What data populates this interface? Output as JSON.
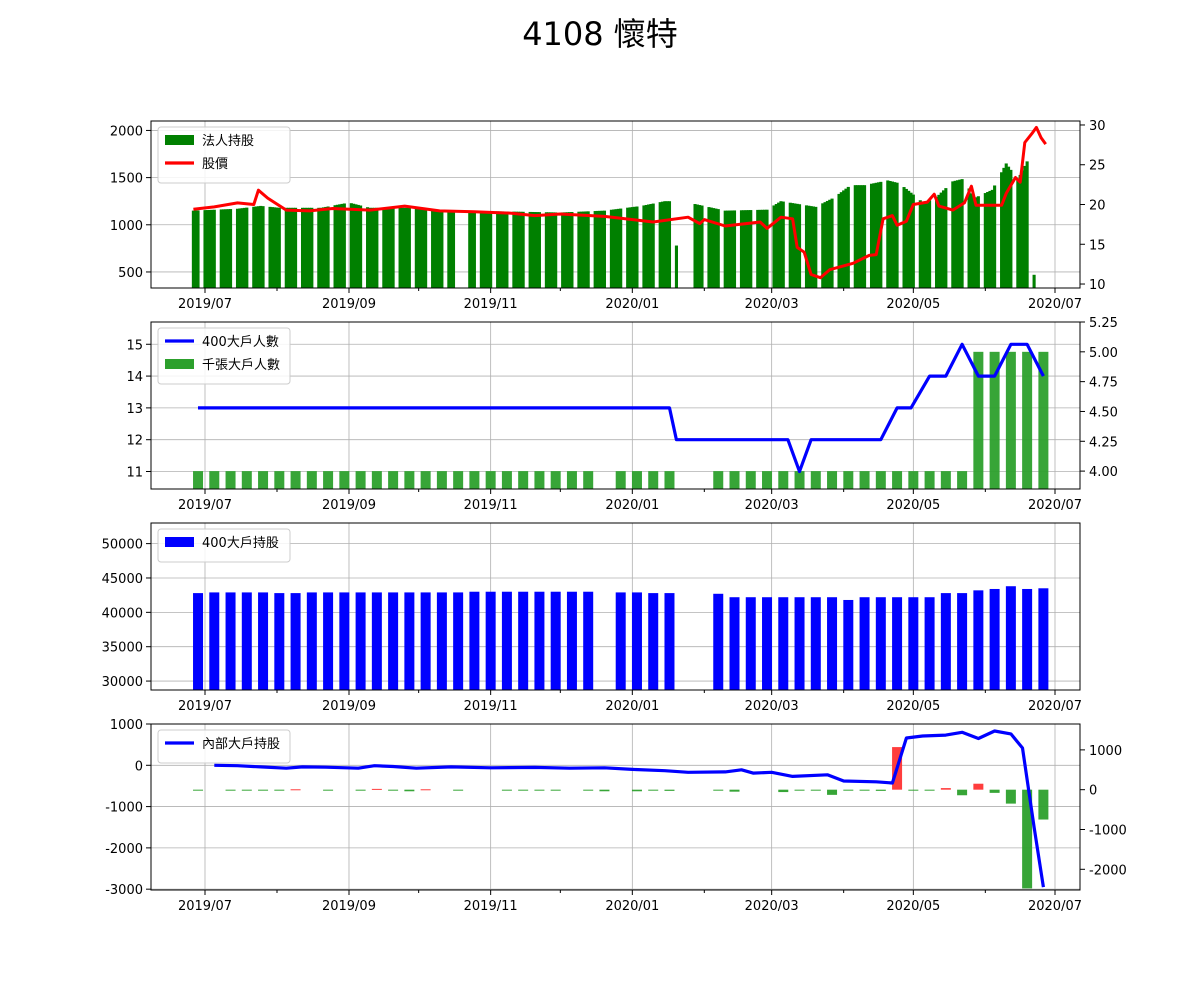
{
  "title": "4108 懷特",
  "colors": {
    "holdings_bar": "#008000",
    "price_line": "#ff0000",
    "big400_line": "#0000ff",
    "thousand_bar": "#2ca02c",
    "big400_bar": "#0000ff",
    "insider_line": "#0000ff",
    "change_pos": "#ff3333",
    "change_neg": "#2ca02c"
  },
  "x_ticks": [
    "2019/07",
    "2019/09",
    "2019/11",
    "2020/01",
    "2020/03",
    "2020/05",
    "2020/07"
  ],
  "chart_data": [
    {
      "type": "bar",
      "panel": "institutional",
      "ylim": [
        330,
        2100
      ],
      "yticks": [
        500,
        1000,
        1500,
        2000
      ],
      "y2lim": [
        9.5,
        30.5
      ],
      "y2ticks": [
        10,
        15,
        20,
        25,
        30
      ],
      "legend_position": "top-left",
      "grid": true,
      "series": [
        {
          "name": "法人持股",
          "axis": "left",
          "type": "bar",
          "anchors": [
            [
              "2019-06-26",
              1150
            ],
            [
              "2019-07-15",
              1170
            ],
            [
              "2019-07-25",
              1200
            ],
            [
              "2019-08-02",
              1180
            ],
            [
              "2019-08-20",
              1180
            ],
            [
              "2019-09-01",
              1235
            ],
            [
              "2019-09-10",
              1180
            ],
            [
              "2019-10-01",
              1180
            ],
            [
              "2019-10-08",
              1160
            ],
            [
              "2019-10-14",
              1150
            ],
            [
              "2019-11-10",
              1140
            ],
            [
              "2019-12-01",
              1130
            ],
            [
              "2019-12-20",
              1150
            ],
            [
              "2020-01-05",
              1200
            ],
            [
              "2020-01-15",
              1250
            ],
            [
              "2020-01-19",
              1250
            ],
            [
              "2020-01-20",
              780
            ],
            [
              "2020-01-28",
              1220
            ],
            [
              "2020-02-10",
              1150
            ],
            [
              "2020-02-28",
              1160
            ],
            [
              "2020-03-05",
              1250
            ],
            [
              "2020-03-20",
              1190
            ],
            [
              "2020-03-28",
              1290
            ],
            [
              "2020-04-04",
              1420
            ],
            [
              "2020-04-10",
              1420
            ],
            [
              "2020-04-20",
              1470
            ],
            [
              "2020-04-25",
              1440
            ],
            [
              "2020-05-05",
              1240
            ],
            [
              "2020-05-10",
              1270
            ],
            [
              "2020-05-18",
              1460
            ],
            [
              "2020-05-23",
              1490
            ],
            [
              "2020-05-27",
              1280
            ],
            [
              "2020-06-04",
              1370
            ],
            [
              "2020-06-10",
              1650
            ],
            [
              "2020-06-15",
              1480
            ],
            [
              "2020-06-20",
              1720
            ],
            [
              "2020-06-21",
              1700
            ],
            [
              "2020-06-22",
              470
            ]
          ]
        },
        {
          "name": "股價",
          "axis": "right",
          "type": "line",
          "points": [
            [
              "2019-06-26",
              19.4
            ],
            [
              "2019-07-05",
              19.7
            ],
            [
              "2019-07-15",
              20.2
            ],
            [
              "2019-07-22",
              20.0
            ],
            [
              "2019-07-24",
              21.8
            ],
            [
              "2019-07-28",
              20.8
            ],
            [
              "2019-08-05",
              19.3
            ],
            [
              "2019-08-15",
              19.2
            ],
            [
              "2019-08-25",
              19.5
            ],
            [
              "2019-09-10",
              19.3
            ],
            [
              "2019-09-25",
              19.8
            ],
            [
              "2019-10-10",
              19.2
            ],
            [
              "2019-10-25",
              19.1
            ],
            [
              "2019-11-10",
              18.9
            ],
            [
              "2019-11-20",
              18.6
            ],
            [
              "2019-12-01",
              18.8
            ],
            [
              "2019-12-20",
              18.5
            ],
            [
              "2020-01-10",
              17.8
            ],
            [
              "2020-01-25",
              18.4
            ],
            [
              "2020-01-30",
              17.6
            ],
            [
              "2020-02-01",
              18.1
            ],
            [
              "2020-02-10",
              17.3
            ],
            [
              "2020-02-25",
              17.8
            ],
            [
              "2020-02-28",
              17.0
            ],
            [
              "2020-03-05",
              18.4
            ],
            [
              "2020-03-10",
              18.2
            ],
            [
              "2020-03-12",
              14.6
            ],
            [
              "2020-03-15",
              14.0
            ],
            [
              "2020-03-18",
              11.2
            ],
            [
              "2020-03-22",
              10.8
            ],
            [
              "2020-03-26",
              11.8
            ],
            [
              "2020-04-05",
              12.6
            ],
            [
              "2020-04-12",
              13.6
            ],
            [
              "2020-04-15",
              13.7
            ],
            [
              "2020-04-18",
              18.2
            ],
            [
              "2020-04-22",
              18.6
            ],
            [
              "2020-04-24",
              17.4
            ],
            [
              "2020-04-28",
              17.9
            ],
            [
              "2020-05-01",
              20.0
            ],
            [
              "2020-05-07",
              20.3
            ],
            [
              "2020-05-10",
              21.3
            ],
            [
              "2020-05-12",
              19.8
            ],
            [
              "2020-05-18",
              19.3
            ],
            [
              "2020-05-23",
              20.2
            ],
            [
              "2020-05-26",
              22.3
            ],
            [
              "2020-05-28",
              19.9
            ],
            [
              "2020-06-08",
              19.9
            ],
            [
              "2020-06-10",
              21.4
            ],
            [
              "2020-06-14",
              23.4
            ],
            [
              "2020-06-16",
              22.8
            ],
            [
              "2020-06-18",
              27.8
            ],
            [
              "2020-06-21",
              28.9
            ],
            [
              "2020-06-23",
              29.7
            ],
            [
              "2020-06-25",
              28.4
            ],
            [
              "2020-06-27",
              27.6
            ]
          ]
        }
      ]
    },
    {
      "type": "bar",
      "panel": "holder_counts",
      "ylim": [
        10.45,
        15.7
      ],
      "yticks": [
        11,
        12,
        13,
        14,
        15
      ],
      "y2lim": [
        3.85,
        5.25
      ],
      "y2ticks": [
        4.0,
        4.25,
        4.5,
        4.75,
        5.0,
        5.25
      ],
      "y2ticklabels": [
        "4.00",
        "4.25",
        "4.50",
        "4.75",
        "5.00",
        "5.25"
      ],
      "legend_position": "top-left",
      "grid": true,
      "series": [
        {
          "name": "400大戶人數",
          "axis": "left",
          "type": "line",
          "points": [
            [
              "2019-06-28",
              13
            ],
            [
              "2020-01-17",
              13
            ],
            [
              "2020-01-20",
              12
            ],
            [
              "2020-03-08",
              12
            ],
            [
              "2020-03-13",
              11
            ],
            [
              "2020-03-18",
              12
            ],
            [
              "2020-04-17",
              12
            ],
            [
              "2020-04-24",
              13
            ],
            [
              "2020-04-30",
              13
            ],
            [
              "2020-05-08",
              14
            ],
            [
              "2020-05-15",
              14
            ],
            [
              "2020-05-22",
              15
            ],
            [
              "2020-05-29",
              14
            ],
            [
              "2020-06-05",
              14
            ],
            [
              "2020-06-12",
              15
            ],
            [
              "2020-06-19",
              15
            ],
            [
              "2020-06-26",
              14
            ]
          ]
        },
        {
          "name": "千張大戶人數",
          "axis": "right",
          "type": "bar",
          "values": [
            4,
            4,
            4,
            4,
            4,
            4,
            4,
            4,
            4,
            4,
            4,
            4,
            4,
            4,
            4,
            4,
            4,
            4,
            4,
            4,
            4,
            4,
            4,
            4,
            4,
            4,
            4,
            4,
            4,
            4,
            4,
            4,
            4,
            4,
            4,
            4,
            4,
            4,
            4,
            4,
            4,
            4,
            4,
            4,
            4,
            5,
            5,
            5,
            5,
            5,
            5,
            5,
            5,
            4,
            4
          ]
        }
      ]
    },
    {
      "type": "bar",
      "panel": "big400_holdings",
      "ylim": [
        28700,
        53000
      ],
      "yticks": [
        30000,
        35000,
        40000,
        45000,
        50000
      ],
      "legend_position": "top-left",
      "grid": true,
      "series": [
        {
          "name": "400大戶持股",
          "axis": "left",
          "type": "bar",
          "values": [
            42800,
            42900,
            42900,
            42900,
            42900,
            42800,
            42800,
            42900,
            42900,
            42900,
            42900,
            42900,
            42900,
            42900,
            42900,
            42900,
            42900,
            43000,
            43000,
            43000,
            43000,
            43000,
            43000,
            43000,
            43000,
            42900,
            42900,
            42800,
            42800,
            42700,
            42200,
            42200,
            42200,
            42200,
            42200,
            42200,
            42200,
            41800,
            42200,
            42200,
            42200,
            42200,
            42200,
            42800,
            42800,
            43200,
            43400,
            43800,
            43400,
            43500,
            44400,
            42200,
            41100
          ]
        }
      ]
    },
    {
      "type": "bar",
      "panel": "insider",
      "ylim": [
        -3020,
        1000
      ],
      "yticks": [
        -3000,
        -2000,
        -1000,
        0,
        1000
      ],
      "y2lim": [
        -2520,
        1650
      ],
      "y2ticks": [
        -2000,
        -1000,
        0,
        1000
      ],
      "legend_position": "top-left",
      "grid": true,
      "series": [
        {
          "name": "內部大戶持股",
          "axis": "left",
          "type": "line",
          "points": [
            [
              "2019-07-05",
              0
            ],
            [
              "2019-07-15",
              -10
            ],
            [
              "2019-07-25",
              -40
            ],
            [
              "2019-08-05",
              -70
            ],
            [
              "2019-08-12",
              -40
            ],
            [
              "2019-08-22",
              -45
            ],
            [
              "2019-09-05",
              -70
            ],
            [
              "2019-09-12",
              -10
            ],
            [
              "2019-09-20",
              -30
            ],
            [
              "2019-09-30",
              -70
            ],
            [
              "2019-10-15",
              -40
            ],
            [
              "2019-11-01",
              -60
            ],
            [
              "2019-11-20",
              -50
            ],
            [
              "2019-12-05",
              -70
            ],
            [
              "2019-12-20",
              -60
            ],
            [
              "2020-01-01",
              -100
            ],
            [
              "2020-01-15",
              -130
            ],
            [
              "2020-01-25",
              -170
            ],
            [
              "2020-02-10",
              -160
            ],
            [
              "2020-02-17",
              -110
            ],
            [
              "2020-02-22",
              -190
            ],
            [
              "2020-03-01",
              -170
            ],
            [
              "2020-03-10",
              -270
            ],
            [
              "2020-03-25",
              -230
            ],
            [
              "2020-04-01",
              -380
            ],
            [
              "2020-04-15",
              -400
            ],
            [
              "2020-04-22",
              -430
            ],
            [
              "2020-04-28",
              660
            ],
            [
              "2020-05-05",
              710
            ],
            [
              "2020-05-15",
              730
            ],
            [
              "2020-05-22",
              800
            ],
            [
              "2020-05-29",
              650
            ],
            [
              "2020-06-05",
              830
            ],
            [
              "2020-06-12",
              760
            ],
            [
              "2020-06-17",
              420
            ],
            [
              "2020-06-22",
              -1500
            ],
            [
              "2020-06-26",
              -2950
            ]
          ]
        },
        {
          "name": "",
          "axis": "right",
          "type": "bar",
          "points": [
            [
              "2019-06-28",
              -15
            ],
            [
              "2019-07-12",
              -10
            ],
            [
              "2019-07-19",
              -15
            ],
            [
              "2019-07-26",
              -15
            ],
            [
              "2019-08-02",
              -20
            ],
            [
              "2019-08-09",
              10
            ],
            [
              "2019-08-23",
              -10
            ],
            [
              "2019-09-06",
              -10
            ],
            [
              "2019-09-13",
              20
            ],
            [
              "2019-09-20",
              -20
            ],
            [
              "2019-09-27",
              -40
            ],
            [
              "2019-10-04",
              10
            ],
            [
              "2019-10-18",
              -10
            ],
            [
              "2019-11-08",
              -5
            ],
            [
              "2019-11-15",
              -5
            ],
            [
              "2019-11-22",
              -10
            ],
            [
              "2019-11-29",
              -15
            ],
            [
              "2019-12-13",
              -10
            ],
            [
              "2019-12-20",
              -40
            ],
            [
              "2020-01-03",
              -40
            ],
            [
              "2020-01-10",
              -20
            ],
            [
              "2020-01-17",
              -30
            ],
            [
              "2020-02-07",
              -10
            ],
            [
              "2020-02-14",
              -50
            ],
            [
              "2020-03-06",
              -60
            ],
            [
              "2020-03-13",
              -10
            ],
            [
              "2020-03-20",
              -20
            ],
            [
              "2020-03-27",
              -130
            ],
            [
              "2020-04-03",
              -10
            ],
            [
              "2020-04-10",
              -20
            ],
            [
              "2020-04-17",
              -30
            ],
            [
              "2020-04-24",
              1070
            ],
            [
              "2020-05-01",
              -20
            ],
            [
              "2020-05-08",
              -15
            ],
            [
              "2020-05-15",
              40
            ],
            [
              "2020-05-22",
              -140
            ],
            [
              "2020-05-29",
              150
            ],
            [
              "2020-06-05",
              -80
            ],
            [
              "2020-06-12",
              -350
            ],
            [
              "2020-06-19",
              -2480
            ],
            [
              "2020-06-26",
              -750
            ]
          ]
        }
      ]
    }
  ]
}
